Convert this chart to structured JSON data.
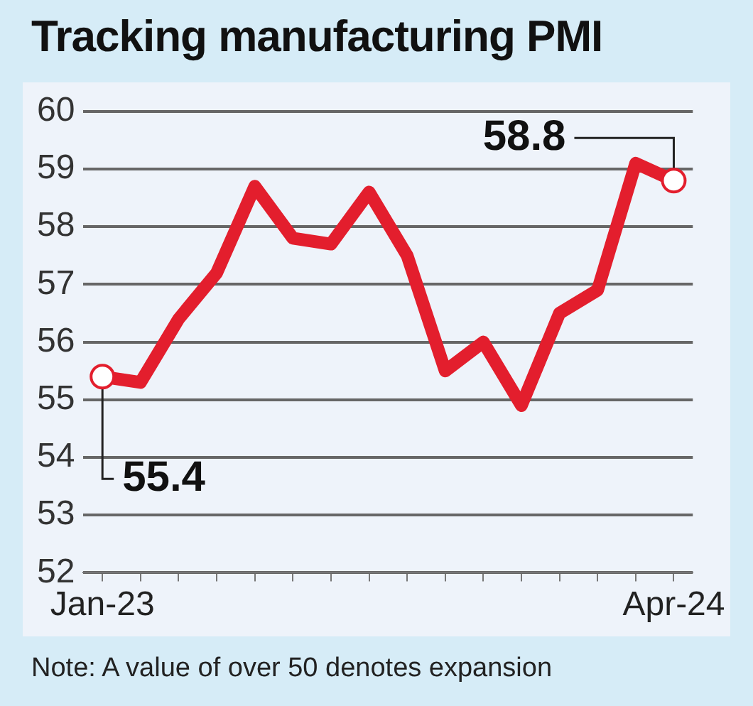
{
  "chart_data": {
    "type": "line",
    "title": "Tracking manufacturing PMI",
    "categories": [
      "Jan-23",
      null,
      null,
      null,
      null,
      null,
      null,
      null,
      null,
      null,
      null,
      null,
      null,
      null,
      null,
      "Apr-24"
    ],
    "series": [
      {
        "color": "#e31e2d",
        "values": [
          55.4,
          55.3,
          56.4,
          57.2,
          58.7,
          57.8,
          57.7,
          58.6,
          57.5,
          55.5,
          56.0,
          54.9,
          56.5,
          56.9,
          59.1,
          58.8
        ]
      }
    ],
    "ylim": [
      52,
      60
    ],
    "yticks": [
      52,
      53,
      54,
      55,
      56,
      57,
      58,
      59,
      60
    ],
    "grid": "y",
    "legend": false,
    "marker": "none",
    "line_style": "solid",
    "annotations": [
      {
        "text": "55.4",
        "x": "Jan-23",
        "y": 55.4
      },
      {
        "text": "58.8",
        "x": "Apr-24",
        "y": 58.8
      },
      "Note: A value of over 50 denotes expansion"
    ]
  }
}
